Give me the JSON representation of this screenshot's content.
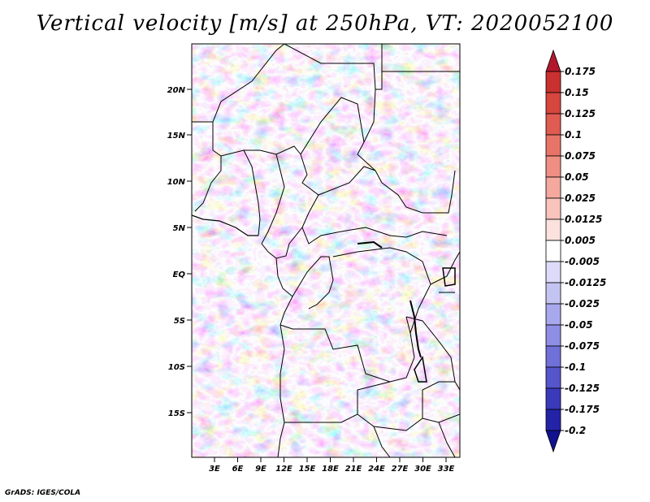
{
  "title": "Vertical velocity [m/s] at 250hPa, VT: 2020052100",
  "footer": "GrADS: IGES/COLA",
  "map": {
    "lat_labels": [
      "20N",
      "15N",
      "10N",
      "5N",
      "EQ",
      "5S",
      "10S",
      "15S"
    ],
    "lon_labels": [
      "3E",
      "6E",
      "9E",
      "12E",
      "15E",
      "18E",
      "21E",
      "24E",
      "27E",
      "30E",
      "33E"
    ]
  },
  "colorbar": {
    "levels": [
      "0.175",
      "0.15",
      "0.125",
      "0.1",
      "0.075",
      "0.05",
      "0.025",
      "0.0125",
      "0.005",
      "-0.005",
      "-0.0125",
      "-0.025",
      "-0.05",
      "-0.075",
      "-0.1",
      "-0.125",
      "-0.175",
      "-0.2"
    ],
    "colors": [
      "#b2182b",
      "#c8312f",
      "#d6453e",
      "#e05b52",
      "#e87468",
      "#ef8e82",
      "#f4a89e",
      "#f8c4bc",
      "#fbe2de",
      "#ffffff",
      "#dcdcfa",
      "#c4c4f3",
      "#a8a8ec",
      "#8e8ee4",
      "#7070d9",
      "#5555cc",
      "#3a3abb",
      "#2323a8",
      "#12128f"
    ]
  }
}
